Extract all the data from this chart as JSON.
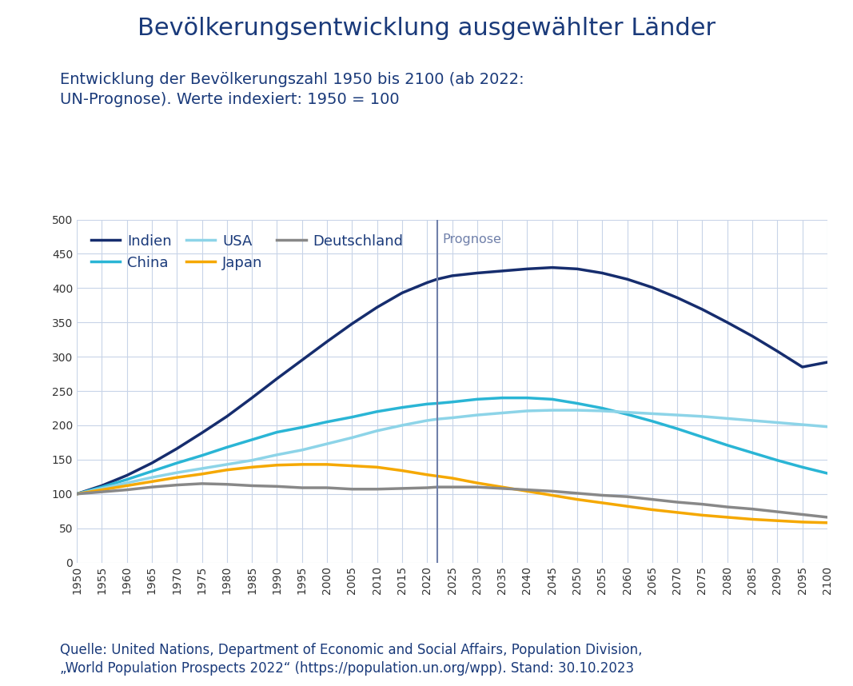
{
  "title": "Bevölkerungsentwicklung ausgewählter Länder",
  "subtitle": "Entwicklung der Bevölkerungszahl 1950 bis 2100 (ab 2022:\nUN-Prognose). Werte indexiert: 1950 = 100",
  "source_text": "Quelle: United Nations, Department of Economic and Social Affairs, Population Division,\n„World Population Prospects 2022“ (https://population.un.org/wpp). Stand: 30.10.2023",
  "prognose_label": "Prognose",
  "prognose_year": 2022,
  "years": [
    1950,
    1955,
    1960,
    1965,
    1970,
    1975,
    1980,
    1985,
    1990,
    1995,
    2000,
    2005,
    2010,
    2015,
    2020,
    2022,
    2025,
    2030,
    2035,
    2040,
    2045,
    2050,
    2055,
    2060,
    2065,
    2070,
    2075,
    2080,
    2085,
    2090,
    2095,
    2100
  ],
  "Indien": [
    100,
    112,
    127,
    145,
    166,
    189,
    213,
    240,
    268,
    295,
    322,
    348,
    372,
    393,
    408,
    413,
    418,
    422,
    425,
    428,
    430,
    428,
    422,
    413,
    401,
    386,
    369,
    350,
    330,
    308,
    285,
    292
  ],
  "China": [
    100,
    110,
    121,
    133,
    145,
    156,
    168,
    179,
    190,
    197,
    205,
    212,
    220,
    226,
    231,
    232,
    234,
    238,
    240,
    240,
    238,
    232,
    225,
    216,
    206,
    195,
    183,
    171,
    160,
    149,
    139,
    130
  ],
  "USA": [
    100,
    108,
    116,
    124,
    131,
    137,
    143,
    149,
    157,
    164,
    173,
    182,
    192,
    200,
    207,
    209,
    211,
    215,
    218,
    221,
    222,
    222,
    221,
    219,
    217,
    215,
    213,
    210,
    207,
    204,
    201,
    198
  ],
  "Japan": [
    100,
    106,
    112,
    118,
    124,
    129,
    135,
    139,
    142,
    143,
    143,
    141,
    139,
    134,
    128,
    126,
    123,
    116,
    110,
    104,
    98,
    92,
    87,
    82,
    77,
    73,
    69,
    66,
    63,
    61,
    59,
    58
  ],
  "Deutschland": [
    100,
    103,
    106,
    110,
    113,
    115,
    114,
    112,
    111,
    109,
    109,
    107,
    107,
    108,
    109,
    110,
    110,
    110,
    108,
    106,
    104,
    101,
    98,
    96,
    92,
    88,
    85,
    81,
    78,
    74,
    70,
    66
  ],
  "colors": {
    "Indien": "#162d6e",
    "China": "#2ab5d5",
    "USA": "#8dd4e8",
    "Japan": "#f5a800",
    "Deutschland": "#888888"
  },
  "ylim": [
    0,
    500
  ],
  "yticks": [
    0,
    50,
    100,
    150,
    200,
    250,
    300,
    350,
    400,
    450,
    500
  ],
  "background_color": "#ffffff",
  "grid_color": "#c8d4e8",
  "title_color": "#1a3a7a",
  "subtitle_color": "#1a3a7a",
  "source_color": "#1a3a7a",
  "prognose_line_color": "#7080aa",
  "title_fontsize": 22,
  "subtitle_fontsize": 14,
  "source_fontsize": 12,
  "legend_fontsize": 13,
  "tick_fontsize": 10
}
